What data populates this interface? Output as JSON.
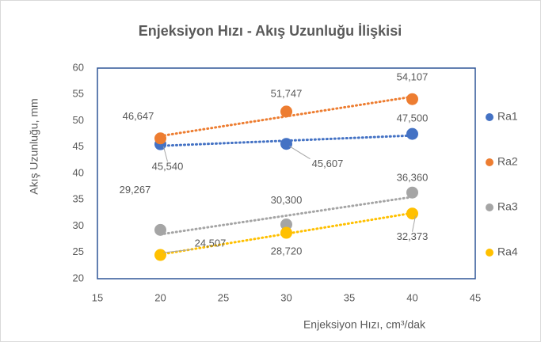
{
  "chart_data": {
    "type": "scatter",
    "title": "Enjeksiyon Hızı - Akış Uzunluğu İlişkisi",
    "x_label": "Enjeksiyon Hızı, cm³/dak",
    "y_label": "Akış Uzunluğu, mm",
    "x": [
      20,
      30,
      40
    ],
    "series": [
      {
        "name": "Ra1",
        "color": "#4472c4",
        "values": [
          45.54,
          45.607,
          47.5
        ],
        "value_labels": [
          "45,540",
          "45,607",
          "47,500"
        ]
      },
      {
        "name": "Ra2",
        "color": "#ed7d31",
        "values": [
          46.647,
          51.747,
          54.107
        ],
        "value_labels": [
          "46,647",
          "51,747",
          "54,107"
        ]
      },
      {
        "name": "Ra3",
        "color": "#a5a5a5",
        "values": [
          29.267,
          30.3,
          36.36
        ],
        "value_labels": [
          "29,267",
          "30,300",
          "36,360"
        ]
      },
      {
        "name": "Ra4",
        "color": "#ffc000",
        "values": [
          24.507,
          28.72,
          32.373
        ],
        "value_labels": [
          "24,507",
          "28,720",
          "32,373"
        ]
      }
    ],
    "xlim": [
      15,
      45
    ],
    "xticks": [
      15,
      20,
      25,
      30,
      35,
      40,
      45
    ],
    "ylim": [
      20,
      60
    ],
    "yticks": [
      20,
      25,
      30,
      35,
      40,
      45,
      50,
      55,
      60
    ],
    "trendline": "linear",
    "legend": "right"
  }
}
